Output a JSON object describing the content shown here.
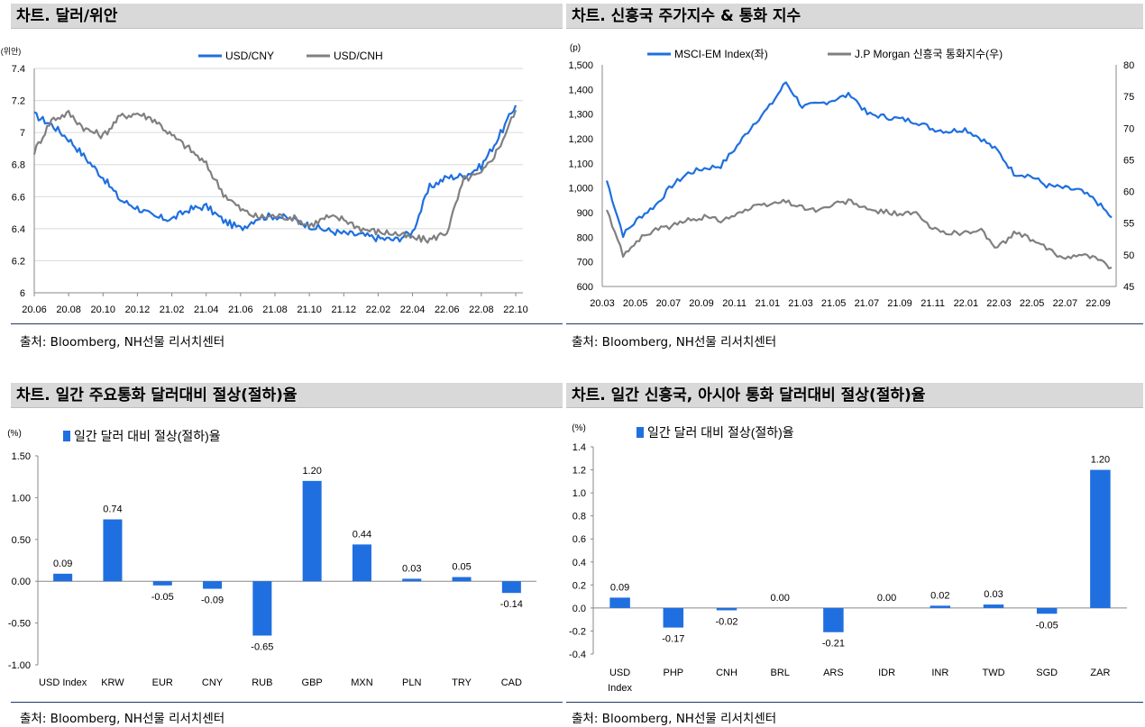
{
  "panels": {
    "p1": {
      "title": "차트. 달러/위안",
      "source": "출처: Bloomberg, NH선물 리서치센터"
    },
    "p2": {
      "title": "차트. 신흥국 주가지수 & 통화 지수",
      "source": "출처: Bloomberg, NH선물 리서치센터"
    },
    "p3": {
      "title": "차트. 일간 주요통화 달러대비 절상(절하)율",
      "source": "출처: Bloomberg, NH선물 리서치센터"
    },
    "p4": {
      "title": "차트. 일간 신흥국, 아시아 통화 달러대비 절상(절하)율",
      "source": "출처: Bloomberg, NH선물 리서치센터"
    }
  },
  "chart_data": [
    {
      "type": "line",
      "title": "차트. 달러/위안",
      "ylabel": "(위안)",
      "ylim": [
        6,
        7.4
      ],
      "yticks": [
        "6",
        "6.2",
        "6.4",
        "6.6",
        "6.8",
        "7",
        "7.2",
        "7.4"
      ],
      "xticks": [
        "20.06",
        "20.08",
        "20.10",
        "20.12",
        "21.02",
        "21.04",
        "21.06",
        "21.08",
        "21.10",
        "21.12",
        "22.02",
        "22.04",
        "22.06",
        "22.08",
        "22.10"
      ],
      "legend": "top",
      "colors": {
        "USD/CNY": "#1f6fe0",
        "USD/CNH": "#808080"
      },
      "series": [
        {
          "name": "USD/CNY",
          "x": [
            "20.06",
            "20.07",
            "20.08",
            "20.09",
            "20.10",
            "20.11",
            "20.12",
            "21.01",
            "21.02",
            "21.03",
            "21.04",
            "21.05",
            "21.06",
            "21.07",
            "21.08",
            "21.09",
            "21.10",
            "21.11",
            "21.12",
            "22.01",
            "22.02",
            "22.03",
            "22.04",
            "22.05",
            "22.06",
            "22.07",
            "22.08",
            "22.09",
            "22.10"
          ],
          "values": [
            7.11,
            7.05,
            6.96,
            6.84,
            6.72,
            6.58,
            6.53,
            6.47,
            6.46,
            6.52,
            6.54,
            6.45,
            6.4,
            6.47,
            6.48,
            6.46,
            6.42,
            6.39,
            6.37,
            6.36,
            6.34,
            6.33,
            6.38,
            6.66,
            6.72,
            6.73,
            6.79,
            6.97,
            7.17
          ]
        },
        {
          "name": "USD/CNH",
          "x": [
            "20.06",
            "20.07",
            "20.08",
            "20.09",
            "20.10",
            "20.11",
            "20.12",
            "21.01",
            "21.02",
            "21.03",
            "21.04",
            "21.05",
            "21.06",
            "21.07",
            "21.08",
            "21.09",
            "21.10",
            "21.11",
            "21.12",
            "22.01",
            "22.02",
            "22.03",
            "22.04",
            "22.05",
            "22.06",
            "22.07",
            "22.08",
            "22.09",
            "22.10"
          ],
          "values": [
            6.88,
            7.08,
            7.12,
            7.02,
            6.98,
            7.1,
            7.12,
            7.08,
            6.98,
            6.9,
            6.8,
            6.62,
            6.52,
            6.47,
            6.48,
            6.47,
            6.42,
            6.47,
            6.46,
            6.4,
            6.38,
            6.37,
            6.34,
            6.33,
            6.38,
            6.71,
            6.74,
            6.9,
            7.14
          ]
        }
      ]
    },
    {
      "type": "line",
      "title": "차트. 신흥국 주가지수 & 통화 지수",
      "ylabel": "(p)",
      "ylim": [
        600,
        1500
      ],
      "y2lim": [
        45,
        80
      ],
      "yticks": [
        "600",
        "700",
        "800",
        "900",
        "1,000",
        "1,100",
        "1,200",
        "1,300",
        "1,400",
        "1,500"
      ],
      "y2ticks": [
        "45",
        "50",
        "55",
        "60",
        "65",
        "70",
        "75",
        "80"
      ],
      "xticks": [
        "20.03",
        "20.05",
        "20.07",
        "20.09",
        "20.11",
        "21.01",
        "21.03",
        "21.05",
        "21.07",
        "21.09",
        "21.11",
        "22.01",
        "22.03",
        "22.05",
        "22.07",
        "22.09"
      ],
      "legend": "top",
      "colors": {
        "MSCI-EM Index(좌)": "#1f6fe0",
        "J.P Morgan 신흥국 통화지수(우)": "#808080"
      },
      "series": [
        {
          "name": "MSCI-EM Index(좌)",
          "axis": "left",
          "x": [
            "20.03",
            "20.04",
            "20.05",
            "20.06",
            "20.07",
            "20.08",
            "20.09",
            "20.10",
            "20.11",
            "20.12",
            "21.01",
            "21.02",
            "21.03",
            "21.04",
            "21.05",
            "21.06",
            "21.07",
            "21.08",
            "21.09",
            "21.10",
            "21.11",
            "21.12",
            "22.01",
            "22.02",
            "22.03",
            "22.04",
            "22.05",
            "22.06",
            "22.07",
            "22.08",
            "22.09",
            "22.10"
          ],
          "values": [
            1030,
            810,
            880,
            930,
            1010,
            1060,
            1080,
            1090,
            1170,
            1260,
            1330,
            1430,
            1330,
            1340,
            1360,
            1380,
            1300,
            1290,
            1280,
            1270,
            1240,
            1230,
            1240,
            1200,
            1150,
            1060,
            1050,
            1010,
            1000,
            990,
            950,
            880
          ]
        },
        {
          "name": "J.P Morgan 신흥국 통화지수(우)",
          "axis": "right",
          "x": [
            "20.03",
            "20.04",
            "20.05",
            "20.06",
            "20.07",
            "20.08",
            "20.09",
            "20.10",
            "20.11",
            "20.12",
            "21.01",
            "21.02",
            "21.03",
            "21.04",
            "21.05",
            "21.06",
            "21.07",
            "21.08",
            "21.09",
            "21.10",
            "21.11",
            "21.12",
            "22.01",
            "22.02",
            "22.03",
            "22.04",
            "22.05",
            "22.06",
            "22.07",
            "22.08",
            "22.09",
            "22.10"
          ],
          "values": [
            57,
            50,
            52.5,
            54,
            54.5,
            55.5,
            56,
            55.5,
            56.5,
            57.5,
            58,
            58.5,
            57.5,
            57,
            58,
            58.5,
            57,
            56.8,
            56.5,
            56.5,
            54,
            53.5,
            53.5,
            53.8,
            51,
            53.5,
            52.5,
            51,
            49.5,
            50.2,
            49.5,
            48
          ]
        }
      ]
    },
    {
      "type": "bar",
      "title": "차트. 일간 주요통화 달러대비 절상(절하)율",
      "ylabel": "(%)",
      "ylim": [
        -1.0,
        1.5
      ],
      "yticks": [
        "1.50",
        "1.00",
        "0.50",
        "0.00",
        "-0.50",
        "-1.00"
      ],
      "legend": "top-left",
      "colors": {
        "bar": "#1f6fe0"
      },
      "categories": [
        "USD Index",
        "KRW",
        "EUR",
        "CNY",
        "RUB",
        "GBP",
        "MXN",
        "PLN",
        "TRY",
        "CAD"
      ],
      "series": [
        {
          "name": "일간 달러 대비 절상(절하)율",
          "values": [
            0.09,
            0.74,
            -0.05,
            -0.09,
            -0.65,
            1.2,
            0.44,
            0.03,
            0.05,
            -0.14
          ]
        }
      ],
      "data_labels": [
        "0.09",
        "0.74",
        "-0.05",
        "-0.09",
        "-0.65",
        "1.20",
        "0.44",
        "0.03",
        "0.05",
        "-0.14"
      ]
    },
    {
      "type": "bar",
      "title": "차트. 일간 신흥국, 아시아 통화 달러대비 절상(절하)율",
      "ylabel": "(%)",
      "ylim": [
        -0.4,
        1.4
      ],
      "yticks": [
        "1.4",
        "1.2",
        "1.0",
        "0.8",
        "0.6",
        "0.4",
        "0.2",
        "0.0",
        "-0.2",
        "-0.4"
      ],
      "legend": "top-left",
      "colors": {
        "bar": "#1f6fe0"
      },
      "categories": [
        "USD Index",
        "PHP",
        "CNH",
        "BRL",
        "ARS",
        "IDR",
        "INR",
        "TWD",
        "SGD",
        "ZAR"
      ],
      "category_lines": [
        [
          "USD",
          "Index"
        ],
        [
          "PHP"
        ],
        [
          "CNH"
        ],
        [
          "BRL"
        ],
        [
          "ARS"
        ],
        [
          "IDR"
        ],
        [
          "INR"
        ],
        [
          "TWD"
        ],
        [
          "SGD"
        ],
        [
          "ZAR"
        ]
      ],
      "series": [
        {
          "name": "일간 달러 대비 절상(절하)율",
          "values": [
            0.09,
            -0.17,
            -0.02,
            0.0,
            -0.21,
            0.0,
            0.02,
            0.03,
            -0.05,
            1.2
          ]
        }
      ],
      "data_labels": [
        "0.09",
        "-0.17",
        "-0.02",
        "0.00",
        "-0.21",
        "0.00",
        "0.02",
        "0.03",
        "-0.05",
        "1.20"
      ]
    }
  ]
}
